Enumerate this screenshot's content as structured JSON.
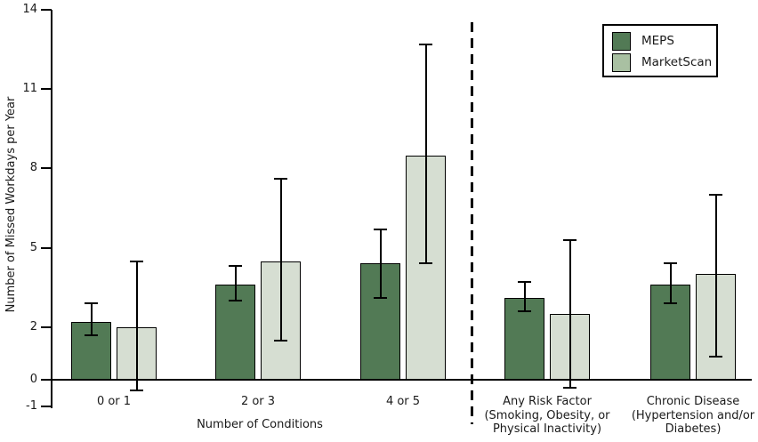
{
  "chart_data": {
    "type": "bar",
    "title": "",
    "xlabel": "Number of Conditions",
    "ylabel": "Number of Missed Workdays per Year",
    "ylim": [
      -1,
      14
    ],
    "yticks": [
      14,
      11,
      8,
      5,
      2,
      0,
      -1
    ],
    "grid": false,
    "legend_position": "top-right",
    "error_bars": true,
    "categories": [
      "0 or 1",
      "2 or 3",
      "4 or 5",
      "Any Risk Factor (Smoking, Obesity, or Physical Inactivity)",
      "Chronic Disease (Hypertension and/or Diabetes)"
    ],
    "category_label_lines": [
      "0 or 1",
      "2 or 3",
      "4 or 5",
      "Any Risk Factor\n(Smoking, Obesity, or\nPhysical Inactivity)",
      "Chronic Disease\n(Hypertension and/or\nDiabetes)"
    ],
    "divider_after_category_index": 2,
    "series": [
      {
        "name": "MEPS",
        "color": "#527a55",
        "legend_color": "#527a55",
        "values": [
          2.2,
          3.6,
          4.4,
          3.1,
          3.6
        ],
        "ci_low": [
          1.7,
          3.0,
          3.1,
          2.6,
          2.9
        ],
        "ci_high": [
          2.9,
          4.3,
          5.7,
          3.7,
          4.4
        ]
      },
      {
        "name": "MarketScan",
        "color": "#d6ded2",
        "legend_color": "#a9c0a2",
        "values": [
          2.0,
          4.5,
          8.5,
          2.5,
          4.0
        ],
        "ci_low": [
          -0.4,
          1.5,
          4.4,
          -0.3,
          0.9
        ],
        "ci_high": [
          4.5,
          7.6,
          12.7,
          5.3,
          7.0
        ]
      }
    ]
  },
  "colors": {
    "axis": "#000000",
    "text": "#1a1a1a",
    "background": "#ffffff"
  }
}
